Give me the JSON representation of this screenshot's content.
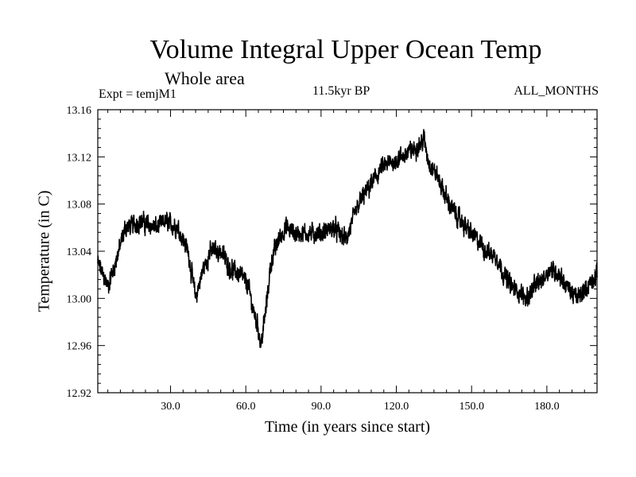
{
  "chart_data": {
    "type": "line",
    "title": "Volume Integral Upper Ocean Temp",
    "subtitle": "Whole area",
    "experiment": "Expt = temjM1",
    "period": "11.5kyr BP",
    "months": "ALL_MONTHS",
    "xlabel": "Time (in years since start)",
    "ylabel": "Temperature (in C)",
    "xlim": [
      1,
      200
    ],
    "ylim": [
      12.92,
      13.16
    ],
    "xticks": [
      30,
      60,
      90,
      120,
      150,
      180
    ],
    "xtick_labels": [
      "30.0",
      "60.0",
      "90.0",
      "120.0",
      "150.0",
      "180.0"
    ],
    "yticks": [
      12.92,
      12.96,
      13.0,
      13.04,
      13.08,
      13.12,
      13.16
    ],
    "ytick_labels": [
      "12.92",
      "12.96",
      "13.00",
      "13.04",
      "13.08",
      "13.12",
      "13.16"
    ],
    "trend": {
      "x": [
        1,
        3,
        5,
        8,
        12,
        18,
        24,
        28,
        33,
        37,
        40,
        43,
        46,
        50,
        54,
        58,
        61,
        63,
        65,
        66,
        68,
        70,
        73,
        76,
        80,
        85,
        90,
        95,
        100,
        105,
        108,
        111,
        114,
        118,
        122,
        126,
        129,
        131,
        133,
        136,
        140,
        144,
        148,
        152,
        156,
        160,
        163,
        166,
        169,
        172,
        175,
        178,
        181,
        185,
        188,
        192,
        196,
        200
      ],
      "y": [
        13.03,
        13.02,
        13.01,
        13.03,
        13.06,
        13.065,
        13.06,
        13.065,
        13.06,
        13.04,
        13.0,
        13.025,
        13.04,
        13.04,
        13.025,
        13.02,
        13.01,
        12.99,
        12.975,
        12.96,
        12.99,
        13.03,
        13.05,
        13.06,
        13.055,
        13.055,
        13.055,
        13.06,
        13.05,
        13.08,
        13.09,
        13.1,
        13.11,
        13.115,
        13.12,
        13.125,
        13.13,
        13.135,
        13.115,
        13.105,
        13.085,
        13.07,
        13.06,
        13.05,
        13.04,
        13.035,
        13.02,
        13.01,
        13.005,
        13.0,
        13.01,
        13.015,
        13.025,
        13.02,
        13.01,
        13.0,
        13.01,
        13.02
      ]
    },
    "noise_amplitude": 0.012,
    "samples_per_year": 12
  }
}
